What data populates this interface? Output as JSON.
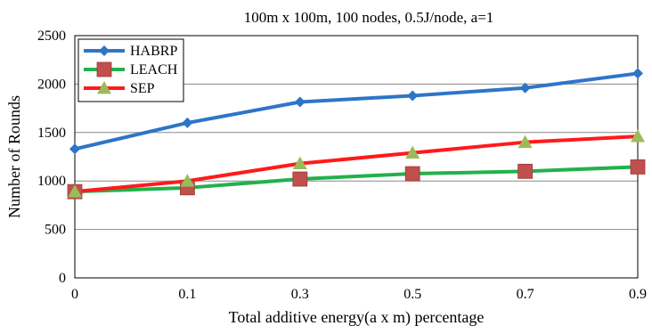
{
  "chart_data": {
    "type": "line",
    "title": "100m x 100m, 100 nodes, 0.5J/node, a=1",
    "xlabel": "Total additive energy(a x m) percentage",
    "ylabel": "Number of Rounds",
    "categories": [
      "0",
      "0.1",
      "0.3",
      "0.5",
      "0.7",
      "0.9"
    ],
    "ylim": [
      0,
      2500
    ],
    "yticks": [
      "0",
      "500",
      "1000",
      "1500",
      "2000",
      "2500"
    ],
    "grid": true,
    "legend_position": "top-left",
    "series": [
      {
        "name": "HABRP",
        "color": "#2e75c8",
        "marker": "diamond",
        "values": [
          1330,
          1600,
          1815,
          1880,
          1960,
          2110
        ]
      },
      {
        "name": "LEACH",
        "color": "#22b14c",
        "marker": "square",
        "marker_color": "#c0504d",
        "values": [
          890,
          930,
          1020,
          1075,
          1100,
          1145
        ]
      },
      {
        "name": "SEP",
        "color": "#ff1a1a",
        "marker": "triangle",
        "marker_color": "#9bbb59",
        "values": [
          890,
          1000,
          1180,
          1290,
          1400,
          1460
        ]
      }
    ]
  }
}
